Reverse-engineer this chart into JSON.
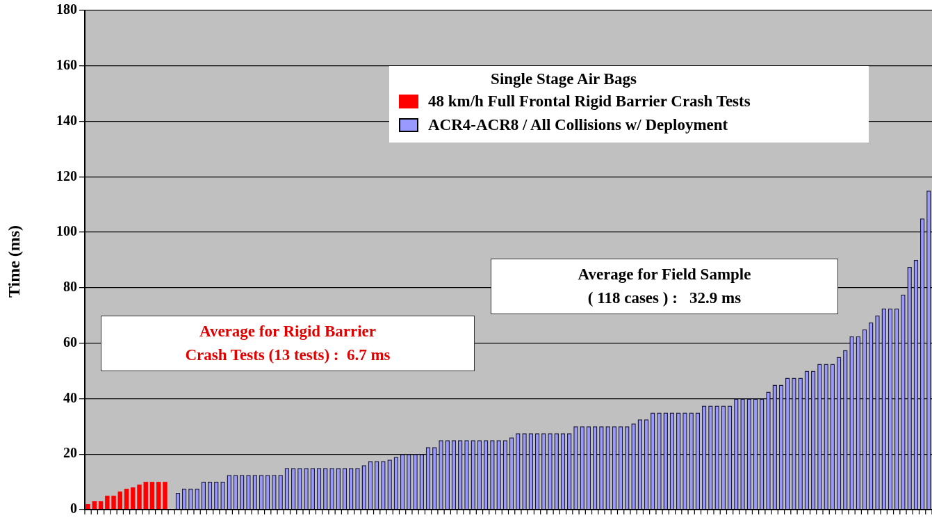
{
  "chart_data": {
    "type": "bar",
    "ylabel": "Time (ms)",
    "legend_title": "Single Stage Air Bags",
    "legend": "top right",
    "categories": [
      null,
      null,
      null,
      null,
      null,
      null,
      null,
      null,
      null,
      null,
      null,
      null,
      null,
      null,
      null,
      null,
      null,
      null,
      null,
      null,
      null,
      null,
      null,
      null,
      null,
      null,
      null,
      null,
      null,
      null,
      null,
      null,
      null,
      null,
      null,
      null,
      null,
      null,
      null,
      null,
      null,
      null,
      null,
      null,
      null,
      null,
      null,
      null,
      null,
      null,
      null,
      null,
      null,
      null,
      null,
      null,
      null,
      null,
      null,
      null,
      null,
      null,
      null,
      null,
      null,
      null,
      null,
      null,
      null,
      null,
      null,
      null,
      null,
      null,
      null,
      null,
      null,
      null,
      null,
      null,
      null,
      null,
      null,
      null,
      null,
      null,
      null,
      null,
      null,
      null,
      null,
      null,
      null,
      null,
      null,
      null,
      null,
      null,
      null,
      null,
      null,
      null,
      null,
      null,
      null,
      null,
      null,
      null,
      null,
      null,
      null,
      null,
      null,
      null,
      null,
      null,
      null,
      null,
      null,
      null,
      null,
      null,
      null,
      null,
      null,
      null,
      null,
      null,
      null,
      null,
      null,
      null
    ],
    "series": [
      {
        "name": "48 km/h Full Frontal Rigid Barrier Crash Tests",
        "color": "#ff0000",
        "values": [
          2,
          3,
          3,
          5,
          5,
          6.5,
          7.5,
          8,
          9,
          10,
          10,
          10,
          10,
          null,
          null,
          null,
          null,
          null,
          null,
          null,
          null,
          null,
          null,
          null,
          null,
          null,
          null,
          null,
          null,
          null,
          null,
          null,
          null,
          null,
          null,
          null,
          null,
          null,
          null,
          null,
          null,
          null,
          null,
          null,
          null,
          null,
          null,
          null,
          null,
          null,
          null,
          null,
          null,
          null,
          null,
          null,
          null,
          null,
          null,
          null,
          null,
          null,
          null,
          null,
          null,
          null,
          null,
          null,
          null,
          null,
          null,
          null,
          null,
          null,
          null,
          null,
          null,
          null,
          null,
          null,
          null,
          null,
          null,
          null,
          null,
          null,
          null,
          null,
          null,
          null,
          null,
          null,
          null,
          null,
          null,
          null,
          null,
          null,
          null,
          null,
          null,
          null,
          null,
          null,
          null,
          null,
          null,
          null,
          null,
          null,
          null,
          null,
          null,
          null,
          null,
          null,
          null,
          null,
          null,
          null,
          null,
          null,
          null,
          null,
          null,
          null,
          null,
          null,
          null,
          null,
          null,
          null
        ]
      },
      {
        "name": "ACR4-ACR8  / All Collisions w/ Deployment",
        "color": "#9999ff",
        "values": [
          null,
          null,
          null,
          null,
          null,
          null,
          null,
          null,
          null,
          null,
          null,
          null,
          null,
          null,
          6,
          7.5,
          7.5,
          7.5,
          10,
          10,
          10,
          10,
          12.5,
          12.5,
          12.5,
          12.5,
          12.5,
          12.5,
          12.5,
          12.5,
          12.5,
          15,
          15,
          15,
          15,
          15,
          15,
          15,
          15,
          15,
          15,
          15,
          15,
          16,
          17.5,
          17.5,
          17.5,
          18,
          19,
          20,
          20,
          20,
          20,
          22.5,
          22.5,
          25,
          25,
          25,
          25,
          25,
          25,
          25,
          25,
          25,
          25,
          25,
          26,
          27.5,
          27.5,
          27.5,
          27.5,
          27.5,
          27.5,
          27.5,
          27.5,
          27.5,
          30,
          30,
          30,
          30,
          30,
          30,
          30,
          30,
          30,
          31,
          32.5,
          32.5,
          35,
          35,
          35,
          35,
          35,
          35,
          35,
          35,
          37.5,
          37.5,
          37.5,
          37.5,
          37.5,
          40,
          40,
          40,
          40,
          40,
          42.5,
          45,
          45,
          47.5,
          47.5,
          47.5,
          50,
          50,
          52.5,
          52.5,
          52.5,
          55,
          57.5,
          62.5,
          62.5,
          65,
          67.5,
          70,
          72.5,
          72.5,
          72.5,
          77.5,
          87.5,
          90,
          105,
          115
        ]
      }
    ],
    "ylim": [
      0,
      180
    ],
    "yticks": [
      0,
      20,
      40,
      60,
      80,
      100,
      120,
      140,
      160,
      180
    ],
    "grid": "y",
    "tick_labels": "y",
    "annotations": [
      "Average for Rigid Barrier\nCrash Tests (13 tests) :  6.7 ms",
      "Average for Field Sample\n( 118 cases ) :   32.9 ms"
    ]
  }
}
